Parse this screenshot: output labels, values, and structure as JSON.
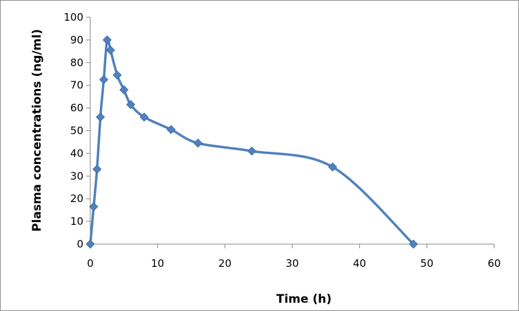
{
  "chart_data": {
    "type": "line",
    "title": "",
    "xlabel": "Time (h)",
    "ylabel": "Plasma concentrations (ng/ml)",
    "xlim": [
      0,
      60
    ],
    "ylim": [
      0,
      100
    ],
    "xticks": [
      0,
      10,
      20,
      30,
      40,
      50,
      60
    ],
    "yticks": [
      0,
      10,
      20,
      30,
      40,
      50,
      60,
      70,
      80,
      90,
      100
    ],
    "grid": false,
    "legend": "none",
    "smooth": true,
    "marker": "diamond",
    "color": "#4f81bd",
    "series": [
      {
        "x": [
          0,
          0.5,
          1,
          1.5,
          2,
          2.5,
          3,
          4,
          5,
          6,
          8,
          12,
          16,
          24,
          36,
          48
        ],
        "y": [
          0,
          16.5,
          33,
          56,
          72.5,
          90,
          85.5,
          74.5,
          68,
          61.5,
          56,
          50.5,
          44.5,
          41,
          34,
          0
        ]
      }
    ]
  }
}
